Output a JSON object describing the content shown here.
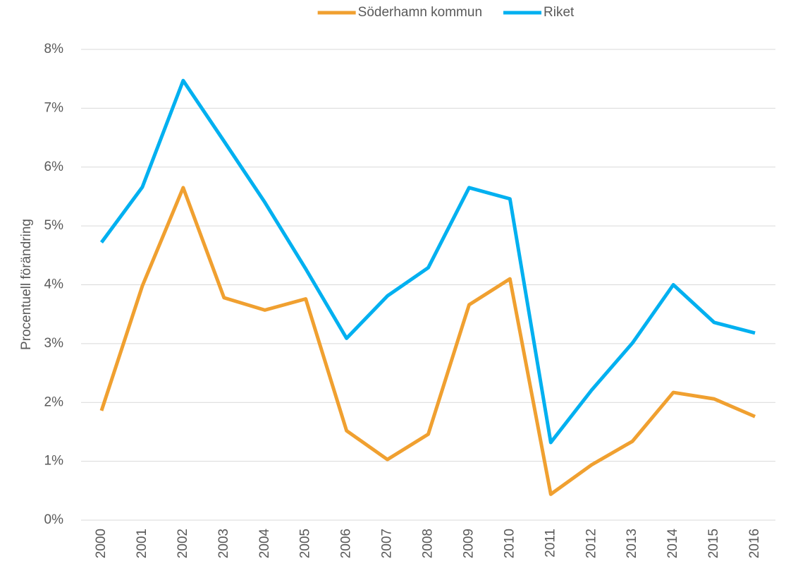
{
  "chart_data": {
    "type": "line",
    "y_label": "Procentuell förändring",
    "categories": [
      "2000",
      "2001",
      "2002",
      "2003",
      "2004",
      "2005",
      "2006",
      "2007",
      "2008",
      "2009",
      "2010",
      "2011",
      "2012",
      "2013",
      "2014",
      "2015",
      "2016"
    ],
    "series": [
      {
        "name": "Söderhamn kommun",
        "color": "#f0a030",
        "values": [
          1.86,
          3.98,
          5.65,
          3.78,
          3.57,
          3.76,
          1.52,
          1.03,
          1.46,
          3.66,
          4.1,
          0.44,
          0.94,
          1.34,
          2.17,
          2.06,
          1.76
        ]
      },
      {
        "name": "Riket",
        "color": "#00b0f0",
        "values": [
          4.72,
          5.66,
          7.47,
          6.44,
          5.4,
          4.27,
          3.09,
          3.81,
          4.29,
          5.65,
          5.46,
          1.32,
          2.21,
          3.01,
          4.0,
          3.36,
          3.18
        ]
      }
    ],
    "ylim": [
      0,
      8
    ],
    "yticks": [
      {
        "value": 0,
        "label": "0%"
      },
      {
        "value": 1,
        "label": "1%"
      },
      {
        "value": 2,
        "label": "2%"
      },
      {
        "value": 3,
        "label": "3%"
      },
      {
        "value": 4,
        "label": "4%"
      },
      {
        "value": 5,
        "label": "5%"
      },
      {
        "value": 6,
        "label": "6%"
      },
      {
        "value": 7,
        "label": "7%"
      },
      {
        "value": 8,
        "label": "8%"
      }
    ],
    "grid": true,
    "legend": "top"
  }
}
